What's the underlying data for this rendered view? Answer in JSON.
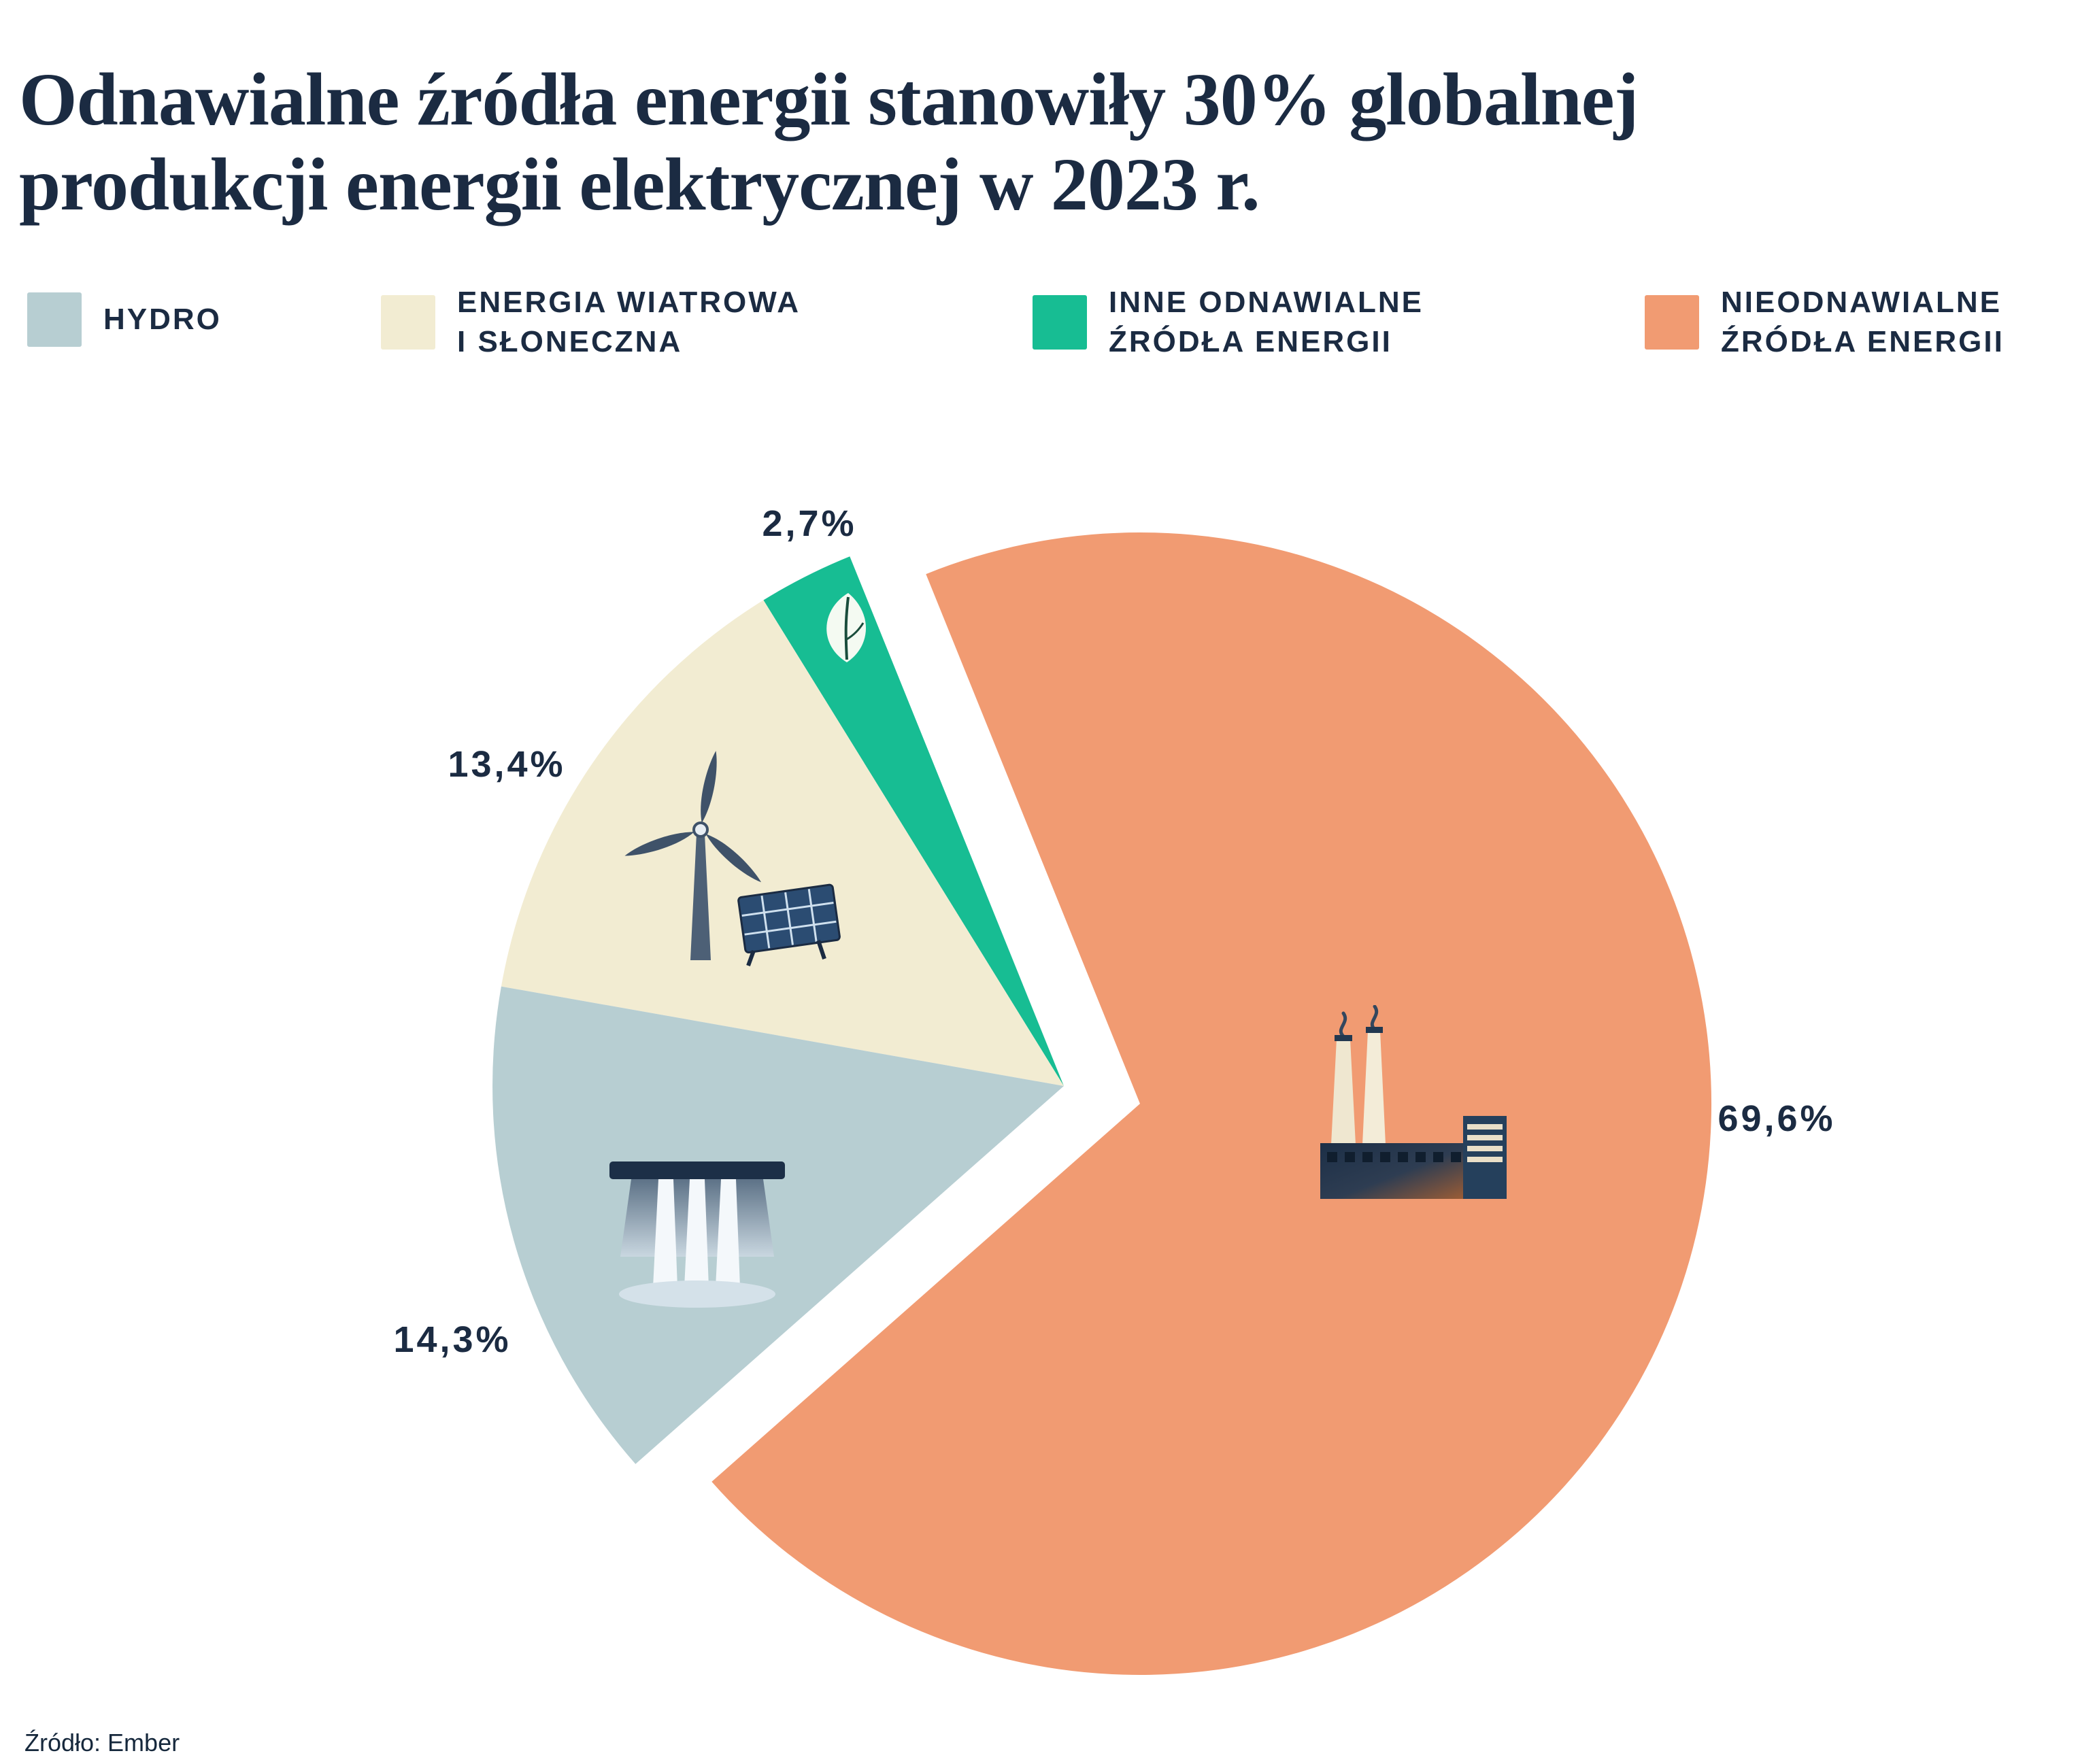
{
  "title": "Odnawialne źródła energii stanowiły 30% globalnej\nprodukcji energii elektrycznej w 2023 r.",
  "source": "Źródło: Ember",
  "colors": {
    "text_navy": "#1b2b42",
    "background": "#ffffff",
    "hydro": "#b7ced2",
    "wind_solar": "#f2ecd2",
    "other_renewables": "#17bd93",
    "non_renewables": "#f19b72"
  },
  "legend": {
    "items": [
      {
        "label": "HYDRO",
        "color": "#b7ced2"
      },
      {
        "label": "ENERGIA WIATROWA\nI SŁONECZNA",
        "color": "#f2ecd2"
      },
      {
        "label": "INNE ODNAWIALNE\nŹRÓDŁA ENERGII",
        "color": "#17bd93"
      },
      {
        "label": "NIEODNAWIALNE\nŹRÓDŁA ENERGII",
        "color": "#f19b72"
      }
    ]
  },
  "chart_data": {
    "type": "pie",
    "title": "Odnawialne źródła energii stanowiły 30% globalnej produkcji energii elektrycznej w 2023 r.",
    "unit": "%",
    "total": 100,
    "start_angle_deg": 112,
    "legend_position": "top",
    "exploded_group": "nonrenewable",
    "slices": [
      {
        "name": "other-renewables",
        "label": "Inne odnawialne źródła energii",
        "value": 2.7,
        "percent_label": "2,7%",
        "color": "#17bd93",
        "icon": "leaf-icon",
        "group": "renewable"
      },
      {
        "name": "wind-solar",
        "label": "Energia wiatrowa i słoneczna",
        "value": 13.4,
        "percent_label": "13,4%",
        "color": "#f2ecd2",
        "icon": "wind-solar-icon",
        "group": "renewable"
      },
      {
        "name": "hydro",
        "label": "Hydro",
        "value": 14.3,
        "percent_label": "14,3%",
        "color": "#b7ced2",
        "icon": "hydro-dam-icon",
        "group": "renewable"
      },
      {
        "name": "non-renewables",
        "label": "Nieodnawialne źródła energii",
        "value": 69.6,
        "percent_label": "69,6%",
        "color": "#f19b72",
        "icon": "factory-icon",
        "group": "nonrenewable"
      }
    ]
  }
}
